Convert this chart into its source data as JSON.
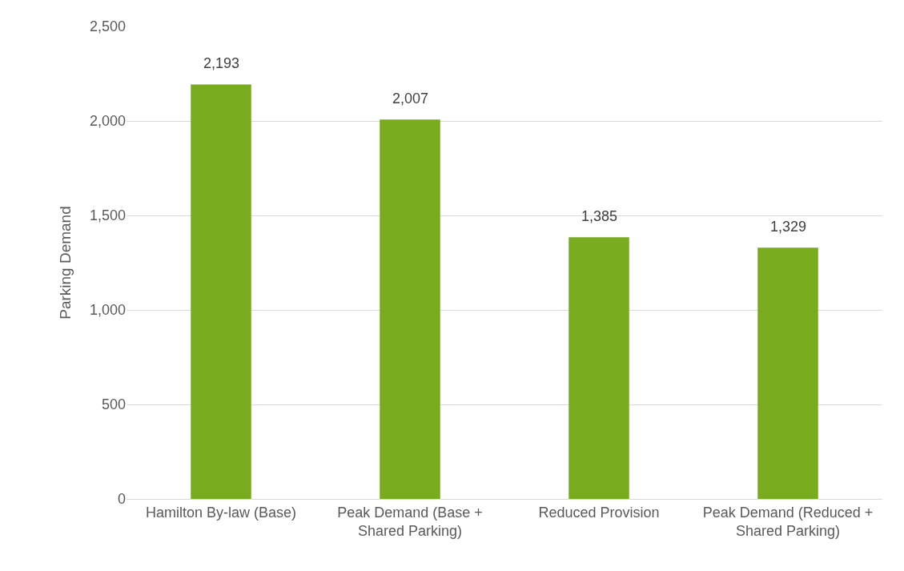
{
  "chart_data": {
    "type": "bar",
    "ylabel": "Parking Demand",
    "categories": [
      "Hamilton By-law (Base)",
      "Peak Demand (Base + Shared Parking)",
      "Reduced Provision",
      "Peak Demand (Reduced + Shared Parking)"
    ],
    "values": [
      2193,
      2007,
      1385,
      1329
    ],
    "color": "#78ab1e",
    "ylim": [
      0,
      2500
    ],
    "yticks": [
      {
        "value": 0,
        "label": "0"
      },
      {
        "value": 500,
        "label": "500"
      },
      {
        "value": 1000,
        "label": "1,000"
      },
      {
        "value": 1500,
        "label": "1,500"
      },
      {
        "value": 2000,
        "label": "2,000"
      },
      {
        "value": 2500,
        "label": "2,500"
      }
    ],
    "value_labels": [
      "2,193",
      "2,007",
      "1,385",
      "1,329"
    ],
    "grid": "y",
    "legend": false
  }
}
